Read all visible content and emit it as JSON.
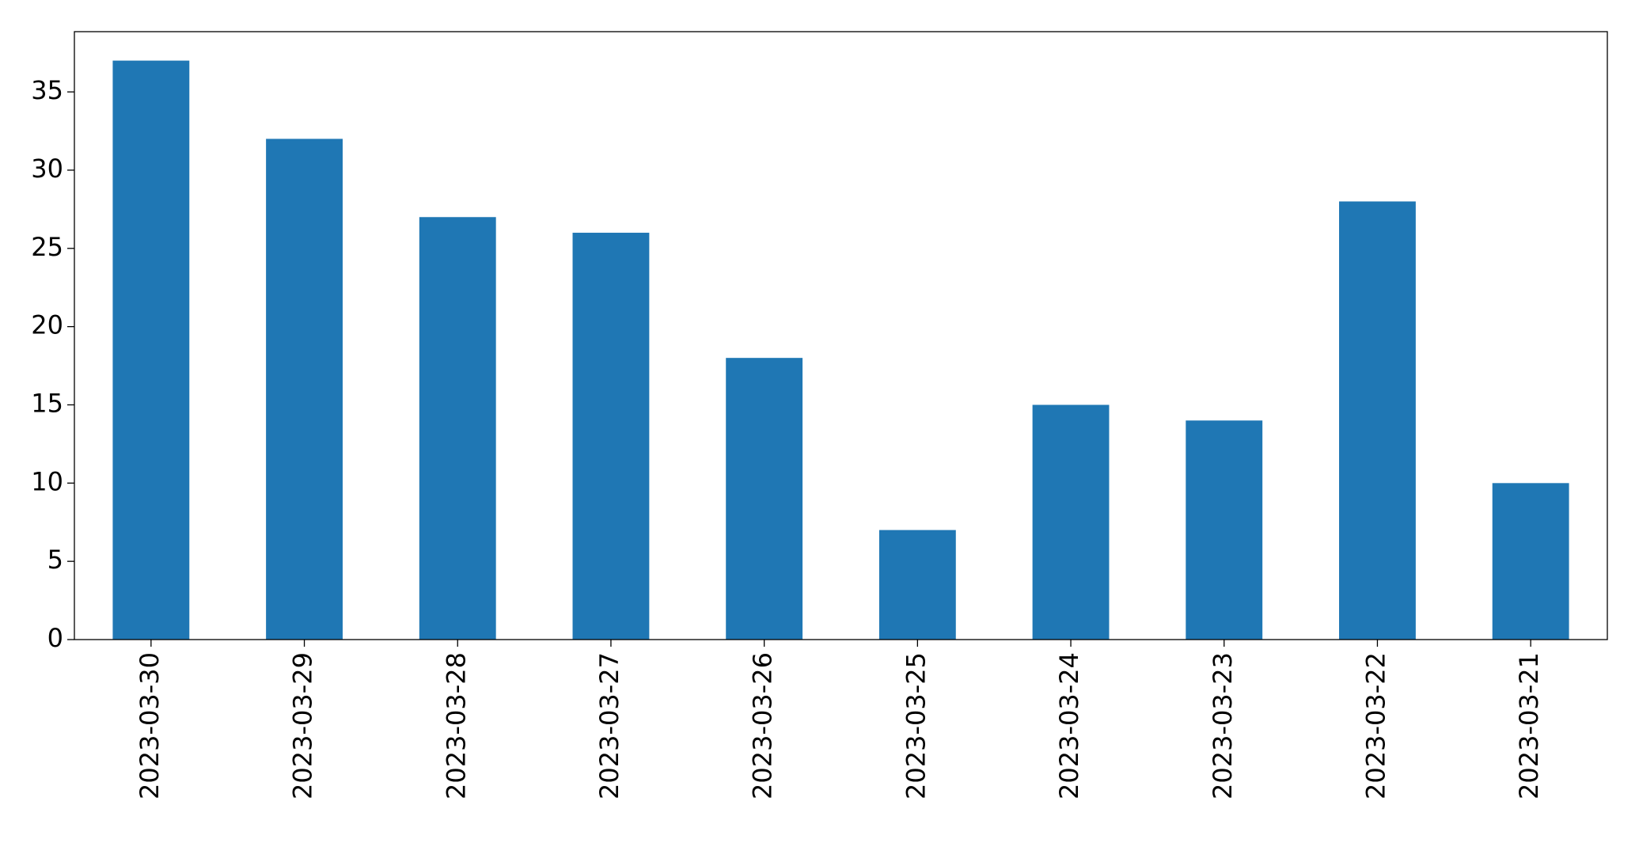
{
  "chart_data": {
    "type": "bar",
    "categories": [
      "2023-03-30",
      "2023-03-29",
      "2023-03-28",
      "2023-03-27",
      "2023-03-26",
      "2023-03-25",
      "2023-03-24",
      "2023-03-23",
      "2023-03-22",
      "2023-03-21"
    ],
    "values": [
      37,
      32,
      27,
      26,
      18,
      7,
      15,
      14,
      28,
      10
    ],
    "color": "#1f77b4",
    "ylim": [
      0,
      38.85
    ],
    "yticks": [
      0,
      5,
      10,
      15,
      20,
      25,
      30,
      35
    ],
    "grid": false
  }
}
